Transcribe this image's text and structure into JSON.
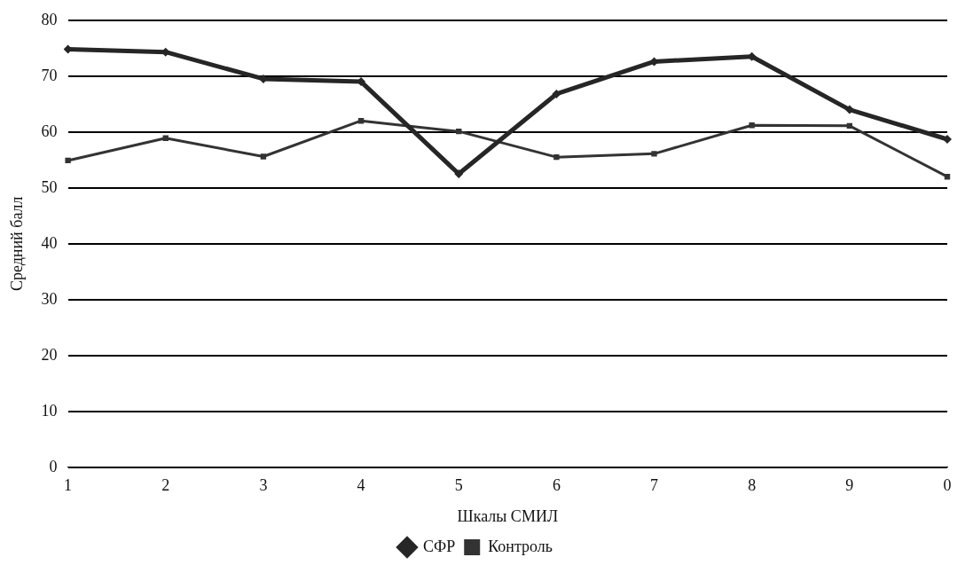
{
  "chart_data": {
    "type": "line",
    "xlabel": "Шкалы СМИЛ",
    "ylabel": "Средний балл",
    "categories": [
      "1",
      "2",
      "3",
      "4",
      "5",
      "6",
      "7",
      "8",
      "9",
      "0"
    ],
    "series": [
      {
        "name": "СФР",
        "color": "#262626",
        "marker": "diamond",
        "values": [
          74.8,
          74.3,
          69.5,
          69.0,
          52.5,
          66.8,
          72.6,
          73.5,
          64.0,
          58.7
        ]
      },
      {
        "name": "Контроль",
        "color": "#333333",
        "marker": "square",
        "values": [
          54.9,
          58.9,
          55.6,
          62.0,
          60.1,
          55.5,
          56.1,
          61.2,
          61.1,
          52.0
        ]
      }
    ],
    "ylim": [
      0,
      80
    ],
    "yticks": [
      0,
      10,
      20,
      30,
      40,
      50,
      60,
      70,
      80
    ],
    "grid": "y",
    "legend": "bottom"
  }
}
